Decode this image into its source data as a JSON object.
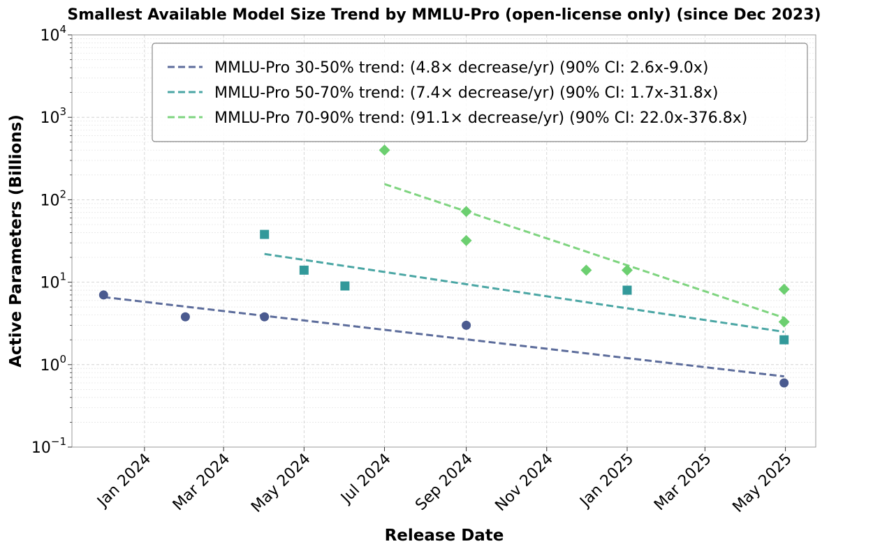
{
  "chart_data": {
    "type": "scatter",
    "title": "Smallest Available Model Size Trend by MMLU-Pro (open-license only) (since Dec 2023)",
    "xlabel": "Release Date",
    "ylabel": "Active Parameters (Billions)",
    "yscale": "log",
    "ylim": [
      0.1,
      10000
    ],
    "yticks": [
      {
        "value": 0.1,
        "base": "10",
        "exp": "−1"
      },
      {
        "value": 1,
        "base": "10",
        "exp": "0"
      },
      {
        "value": 10,
        "base": "10",
        "exp": "1"
      },
      {
        "value": 100,
        "base": "10",
        "exp": "2"
      },
      {
        "value": 1000,
        "base": "10",
        "exp": "3"
      },
      {
        "value": 10000,
        "base": "10",
        "exp": "4"
      }
    ],
    "xlim": [
      "2023-11-07",
      "2025-05-24"
    ],
    "xticks": [
      {
        "date": "2024-01-01",
        "label": "Jan 2024"
      },
      {
        "date": "2024-03-01",
        "label": "Mar 2024"
      },
      {
        "date": "2024-05-01",
        "label": "May 2024"
      },
      {
        "date": "2024-07-01",
        "label": "Jul 2024"
      },
      {
        "date": "2024-09-01",
        "label": "Sep 2024"
      },
      {
        "date": "2024-11-01",
        "label": "Nov 2024"
      },
      {
        "date": "2025-01-01",
        "label": "Jan 2025"
      },
      {
        "date": "2025-03-01",
        "label": "Mar 2025"
      },
      {
        "date": "2025-05-01",
        "label": "May 2025"
      }
    ],
    "legend_position": "top-right",
    "series": [
      {
        "name": "MMLU-Pro 30-50%",
        "legend_label": "MMLU-Pro 30-50% trend:  (4.8× decrease/yr) (90% CI: 2.6x-9.0x)",
        "color": "#4a5a8f",
        "trend_color": "#5c6c9b",
        "marker": "circle",
        "points": [
          {
            "date": "2023-12-01",
            "value": 7.0
          },
          {
            "date": "2024-02-01",
            "value": 3.8
          },
          {
            "date": "2024-04-01",
            "value": 3.8
          },
          {
            "date": "2024-09-01",
            "value": 3.0
          },
          {
            "date": "2025-04-30",
            "value": 0.6
          }
        ],
        "trend": [
          {
            "date": "2023-12-01",
            "value": 6.6
          },
          {
            "date": "2025-04-30",
            "value": 0.72
          }
        ]
      },
      {
        "name": "MMLU-Pro 50-70%",
        "legend_label": "MMLU-Pro 50-70% trend:  (7.4× decrease/yr) (90% CI: 1.7x-31.8x)",
        "color": "#32999a",
        "trend_color": "#4aa6a4",
        "marker": "square",
        "points": [
          {
            "date": "2024-04-01",
            "value": 38
          },
          {
            "date": "2024-05-01",
            "value": 14
          },
          {
            "date": "2024-06-01",
            "value": 9
          },
          {
            "date": "2025-01-01",
            "value": 8
          },
          {
            "date": "2025-04-30",
            "value": 2.0
          }
        ],
        "trend": [
          {
            "date": "2024-04-01",
            "value": 22
          },
          {
            "date": "2025-04-30",
            "value": 2.5
          }
        ]
      },
      {
        "name": "MMLU-Pro 70-90%",
        "legend_label": "MMLU-Pro 70-90% trend:  (91.1× decrease/yr) (90% CI: 22.0x-376.8x)",
        "color": "#6ccf70",
        "trend_color": "#7ed47f",
        "marker": "diamond",
        "points": [
          {
            "date": "2024-07-01",
            "value": 400
          },
          {
            "date": "2024-09-01",
            "value": 72
          },
          {
            "date": "2024-09-01",
            "value": 32
          },
          {
            "date": "2024-12-01",
            "value": 14
          },
          {
            "date": "2025-01-01",
            "value": 14
          },
          {
            "date": "2025-04-30",
            "value": 8.2
          },
          {
            "date": "2025-04-30",
            "value": 3.3
          }
        ],
        "trend": [
          {
            "date": "2024-07-01",
            "value": 155
          },
          {
            "date": "2025-04-30",
            "value": 3.7
          }
        ]
      }
    ]
  }
}
